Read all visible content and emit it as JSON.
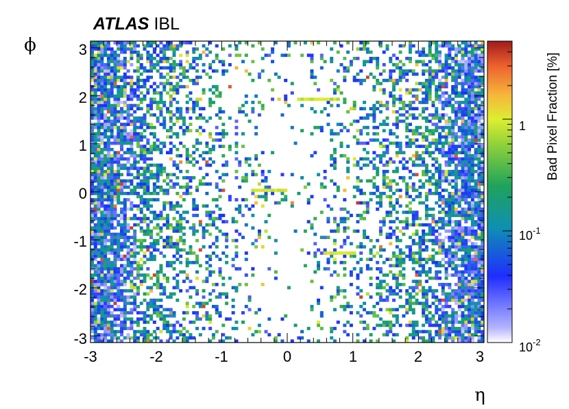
{
  "chart_data": {
    "type": "heatmap",
    "title": "",
    "experiment_label": "ATLAS",
    "detector_label": "IBL",
    "xlabel": "η",
    "ylabel": "ϕ",
    "xlim": [
      -3,
      3
    ],
    "ylim": [
      -3.14,
      3.14
    ],
    "x_ticks": [
      "-3",
      "-2",
      "-1",
      "0",
      "1",
      "2",
      "3"
    ],
    "y_ticks": [
      "-3",
      "-2",
      "-1",
      "0",
      "1",
      "2",
      "3"
    ],
    "n_eta_bins": 120,
    "n_phi_bins": 96,
    "colorbar": {
      "label": "Bad Pixel Fraction [%]",
      "scale": "log",
      "range": [
        0.01,
        5
      ],
      "ticks": [
        {
          "value": 1,
          "base": "1",
          "exp": ""
        },
        {
          "value": 0.1,
          "base": "10",
          "exp": "-1"
        },
        {
          "value": 0.01,
          "base": "10",
          "exp": "-2"
        }
      ]
    },
    "notable_features": [
      {
        "description": "horizontal band",
        "eta_range": [
          -0.55,
          -0.05
        ],
        "phi": 0.05,
        "value": 1.0
      },
      {
        "description": "horizontal band",
        "eta_range": [
          0.15,
          0.75
        ],
        "phi": 1.9,
        "value": 0.8
      },
      {
        "description": "horizontal band",
        "eta_range": [
          0.55,
          1.05
        ],
        "phi": -1.25,
        "value": 1.0
      },
      {
        "description": "hot pixel",
        "eta": 1.1,
        "phi": -0.2,
        "value": 4.0
      }
    ],
    "grid": false,
    "legend": "colorbar-right"
  }
}
